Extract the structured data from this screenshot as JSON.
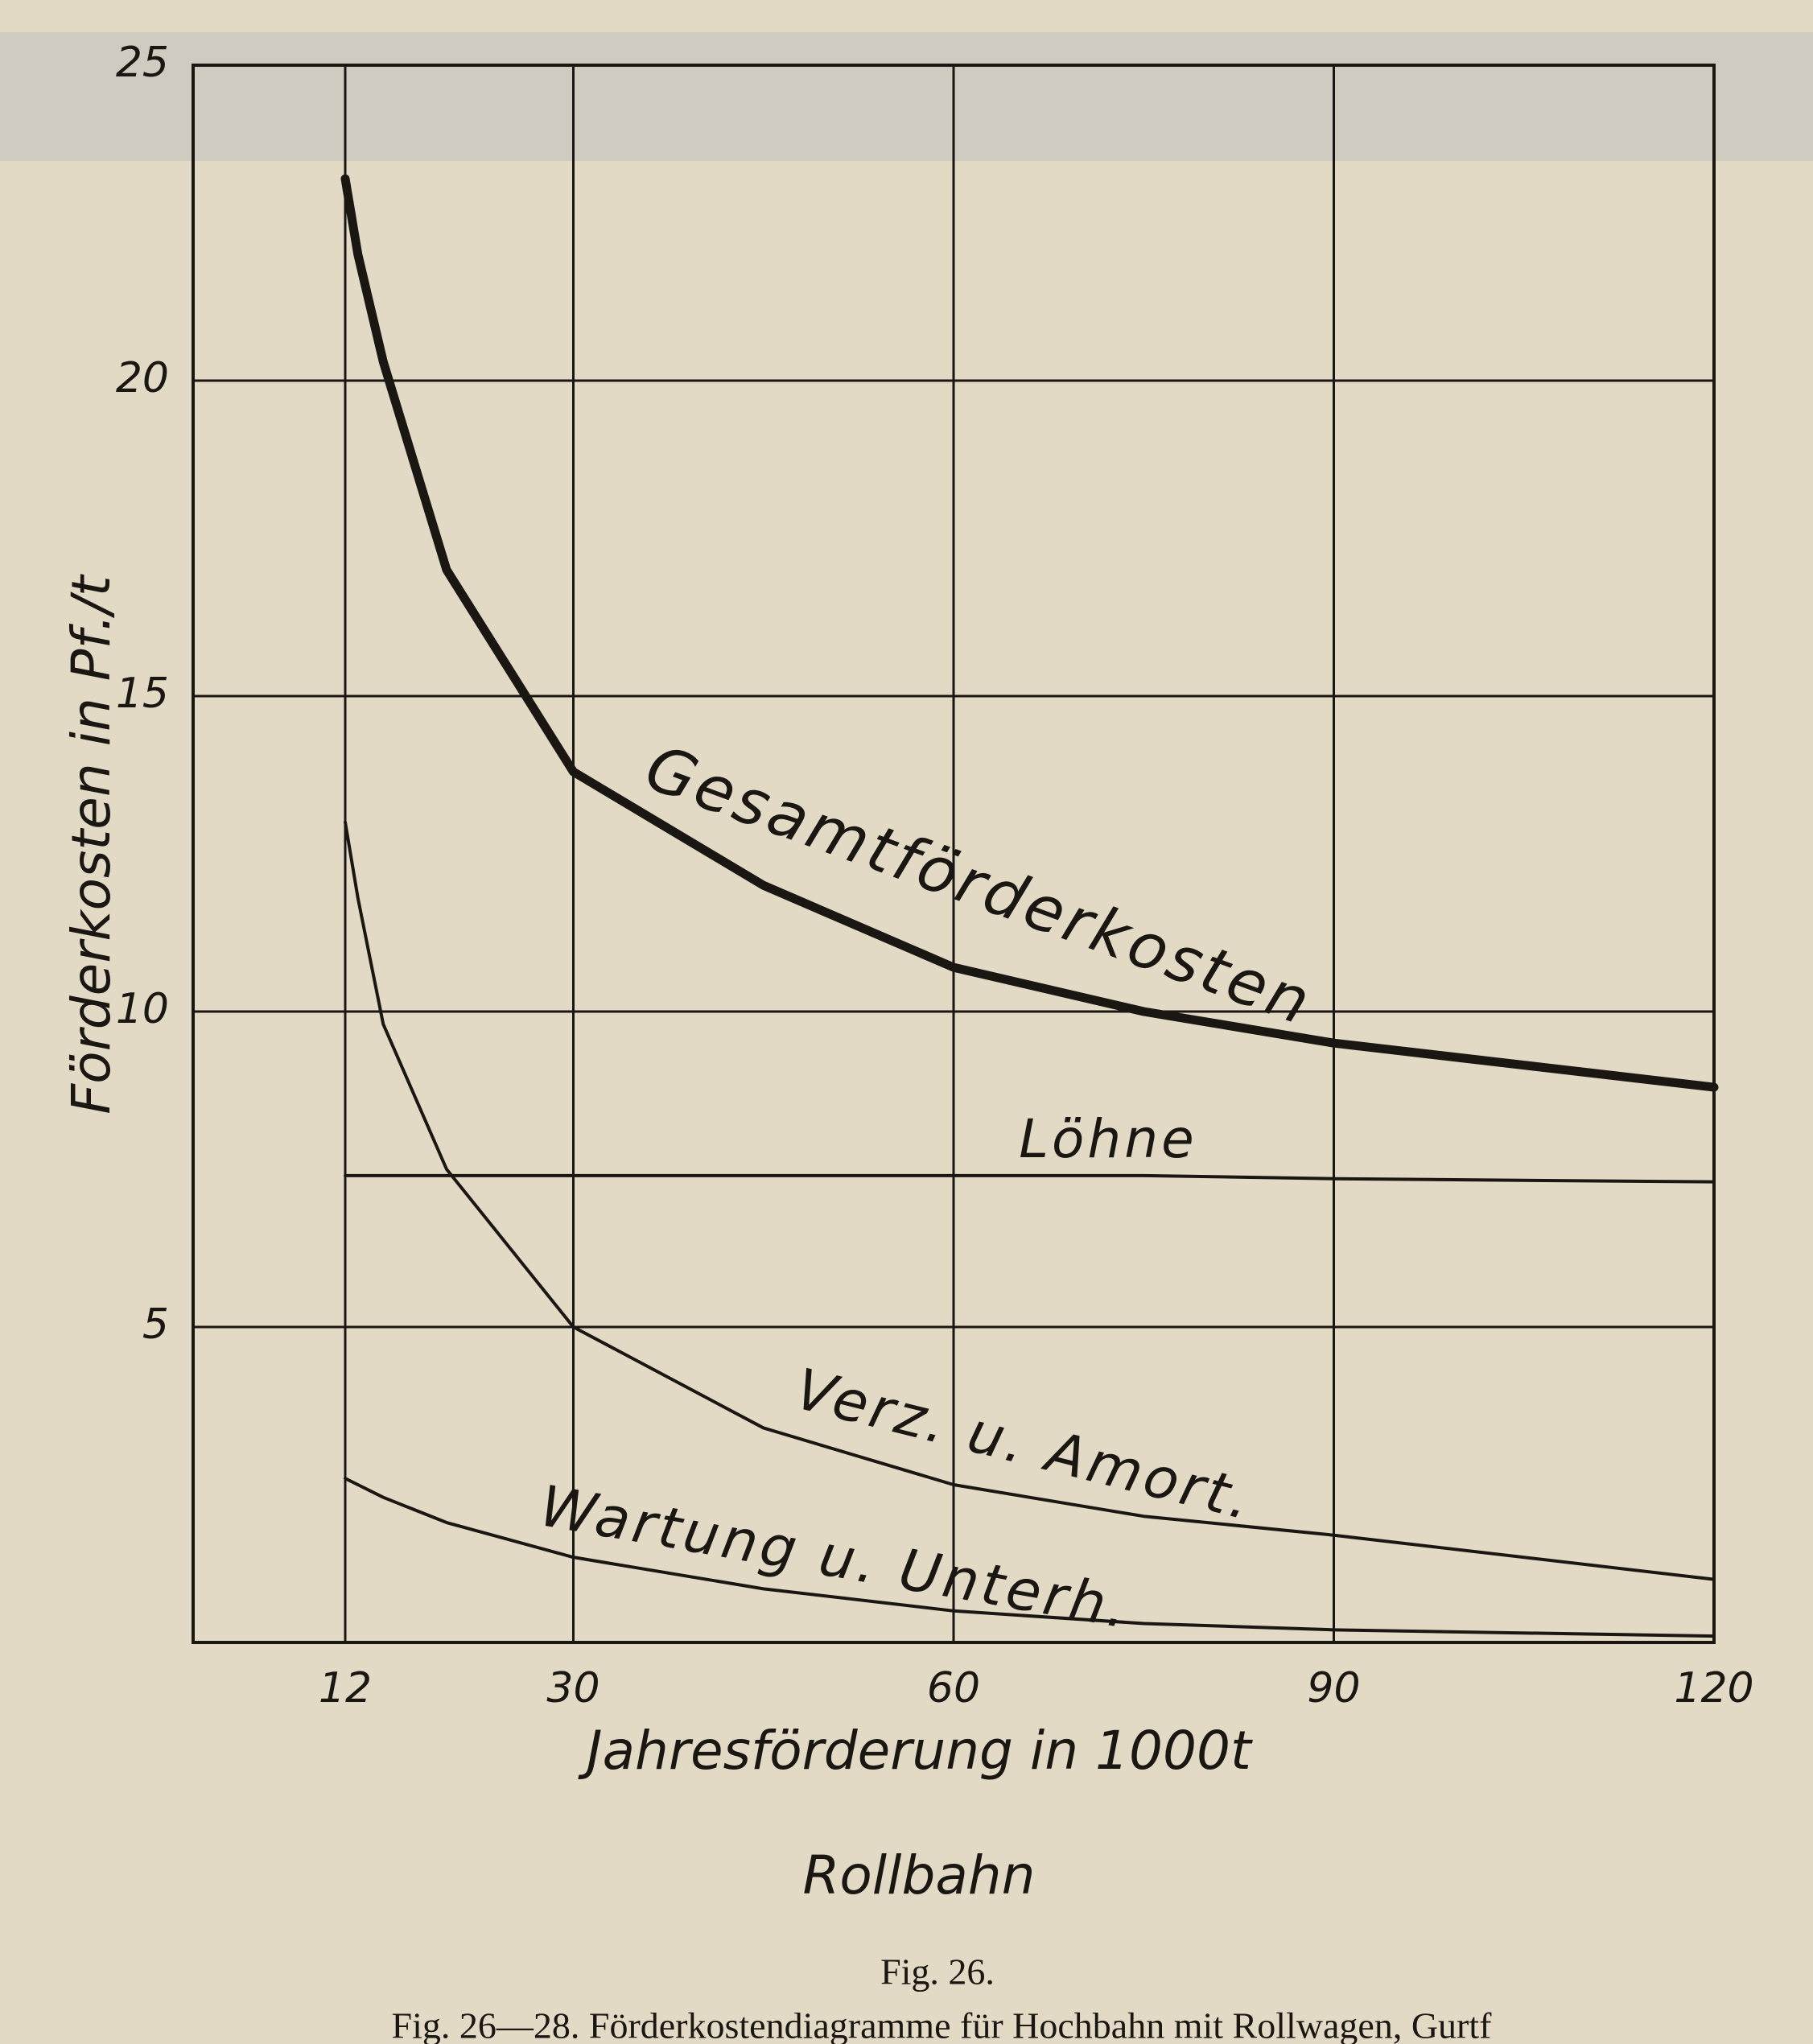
{
  "chart_data": {
    "type": "line",
    "x_label": "Jahresförderung in 1000t",
    "y_label": "Förderkosten in Pf./t",
    "title": "Rollbahn",
    "figure_label": "Fig. 26.",
    "caption": "Fig. 26—28. Förderkostendiagramme für Hochbahn mit Rollwagen, Gurtf",
    "x": [
      12,
      13,
      15,
      20,
      30,
      45,
      60,
      75,
      90,
      120
    ],
    "series": [
      {
        "name": "Gesamtförderkosten",
        "color": "#1a1712",
        "values": [
          23.2,
          22.0,
          20.3,
          17.0,
          13.8,
          12.0,
          10.7,
          10.0,
          9.5,
          8.8
        ]
      },
      {
        "name": "Löhne",
        "color": "#1a1712",
        "values": [
          7.4,
          7.4,
          7.4,
          7.4,
          7.4,
          7.4,
          7.4,
          7.4,
          7.35,
          7.3
        ]
      },
      {
        "name": "Verz. u. Amort.",
        "color": "#1a1712",
        "values": [
          13.0,
          11.8,
          9.8,
          7.5,
          5.0,
          3.4,
          2.5,
          2.0,
          1.7,
          1.0
        ]
      },
      {
        "name": "Wartung u. Unterh.",
        "color": "#1a1712",
        "values": [
          2.6,
          2.5,
          2.3,
          1.9,
          1.35,
          0.85,
          0.5,
          0.3,
          0.2,
          0.1
        ]
      }
    ],
    "xlim": [
      0,
      120
    ],
    "ylim": [
      0,
      25
    ],
    "xticks": [
      12,
      30,
      60,
      90,
      120
    ],
    "yticks": [
      5,
      10,
      15,
      20,
      25
    ],
    "grid": true
  }
}
